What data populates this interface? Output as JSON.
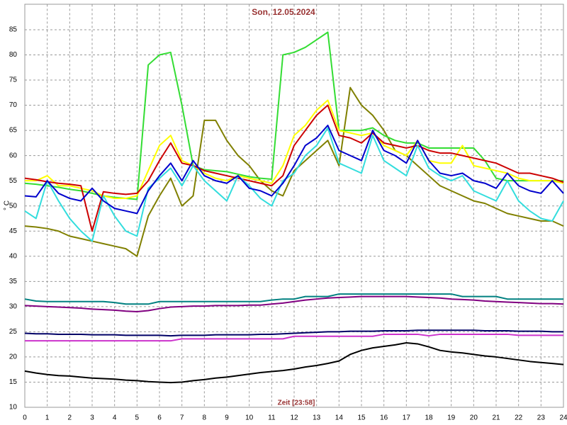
{
  "chart_data": {
    "type": "line",
    "title": "Son, 12.05.2024",
    "x_label": "Zeit [23:58]",
    "y_label": "° C",
    "x": [
      0,
      0.5,
      1,
      1.5,
      2,
      2.5,
      3,
      3.5,
      4,
      4.5,
      5,
      5.5,
      6,
      6.5,
      7,
      7.5,
      8,
      8.5,
      9,
      9.5,
      10,
      10.5,
      11,
      11.5,
      12,
      12.5,
      13,
      13.5,
      14,
      14.5,
      15,
      15.5,
      16,
      16.5,
      17,
      17.5,
      18,
      18.5,
      19,
      19.5,
      20,
      20.5,
      21,
      21.5,
      22,
      22.5,
      23,
      23.5,
      24
    ],
    "xlim": [
      0,
      24
    ],
    "xticks": [
      0,
      1,
      2,
      3,
      4,
      5,
      6,
      7,
      8,
      9,
      10,
      11,
      12,
      13,
      14,
      15,
      16,
      17,
      18,
      19,
      20,
      21,
      22,
      23,
      24
    ],
    "ylim": [
      10,
      90
    ],
    "yticks": [
      10,
      15,
      20,
      25,
      30,
      35,
      40,
      45,
      50,
      55,
      60,
      65,
      70,
      75,
      80,
      85
    ],
    "grid": true,
    "series": [
      {
        "color": "#000000",
        "values": [
          17.2,
          16.8,
          16.5,
          16.3,
          16.2,
          16,
          15.8,
          15.7,
          15.6,
          15.4,
          15.3,
          15.1,
          15,
          14.9,
          15,
          15.3,
          15.5,
          15.8,
          16,
          16.3,
          16.6,
          16.9,
          17.1,
          17.3,
          17.6,
          18,
          18.3,
          18.7,
          19.2,
          20.5,
          21.3,
          21.8,
          22.1,
          22.4,
          22.8,
          22.6,
          22,
          21.3,
          21,
          20.8,
          20.5,
          20.2,
          20,
          19.7,
          19.4,
          19.1,
          18.9,
          18.7,
          18.5
        ]
      },
      {
        "color": "#cc33cc",
        "values": [
          23.2,
          23.2,
          23.2,
          23.2,
          23.2,
          23.2,
          23.2,
          23.2,
          23.2,
          23.2,
          23.2,
          23.2,
          23.2,
          23.2,
          23.6,
          23.6,
          23.6,
          23.6,
          23.6,
          23.6,
          23.6,
          23.6,
          23.6,
          23.6,
          24.1,
          24.1,
          24.1,
          24.1,
          24.1,
          24.1,
          24.1,
          24.1,
          24.5,
          24.5,
          24.5,
          24.5,
          24.2,
          24.5,
          24.5,
          24.5,
          24.5,
          24.5,
          24.5,
          24.5,
          24.3,
          24.3,
          24.3,
          24.3,
          24.3
        ]
      },
      {
        "color": "#000066",
        "values": [
          24.7,
          24.6,
          24.6,
          24.5,
          24.5,
          24.5,
          24.4,
          24.4,
          24.4,
          24.3,
          24.3,
          24.3,
          24.3,
          24.2,
          24.3,
          24.3,
          24.3,
          24.4,
          24.4,
          24.4,
          24.4,
          24.5,
          24.5,
          24.6,
          24.7,
          24.8,
          24.9,
          25,
          25,
          25.1,
          25.1,
          25.1,
          25.2,
          25.2,
          25.2,
          25.3,
          25.3,
          25.3,
          25.3,
          25.3,
          25.3,
          25.2,
          25.2,
          25.2,
          25.1,
          25.1,
          25.1,
          25,
          25
        ]
      },
      {
        "color": "#800080",
        "values": [
          30.2,
          30.1,
          30,
          29.9,
          29.8,
          29.7,
          29.5,
          29.4,
          29.3,
          29.1,
          29,
          29.2,
          29.6,
          29.9,
          30,
          30.1,
          30.1,
          30.2,
          30.2,
          30.2,
          30.3,
          30.3,
          30.5,
          30.7,
          31,
          31.3,
          31.5,
          31.7,
          31.8,
          31.9,
          32,
          32,
          32,
          32,
          32,
          31.9,
          31.8,
          31.7,
          31.5,
          31.4,
          31.3,
          31.1,
          31,
          30.9,
          30.8,
          30.7,
          30.6,
          30.6,
          30.5
        ]
      },
      {
        "color": "#008080",
        "values": [
          31.5,
          31.1,
          31,
          31,
          31,
          31,
          31,
          31,
          30.8,
          30.5,
          30.5,
          30.5,
          31,
          31,
          31,
          31,
          31,
          31,
          31,
          31,
          31,
          31,
          31.3,
          31.5,
          31.5,
          32,
          32,
          32,
          32.5,
          32.5,
          32.5,
          32.5,
          32.5,
          32.5,
          32.5,
          32.5,
          32.5,
          32.5,
          32.5,
          32,
          32,
          32,
          32,
          31.5,
          31.5,
          31.5,
          31.5,
          31.5,
          31.5
        ]
      },
      {
        "color": "#808000",
        "values": [
          46,
          45.8,
          45.5,
          45,
          44,
          43.5,
          43,
          42.5,
          42,
          41.5,
          40,
          48,
          52,
          55.5,
          50,
          52,
          67,
          67,
          63,
          60,
          58,
          55,
          53,
          52,
          57,
          59,
          61,
          63,
          58,
          73.5,
          70,
          68,
          65,
          61,
          60,
          58,
          56,
          54,
          53,
          52,
          51,
          50.5,
          49.5,
          48.5,
          48,
          47.5,
          47,
          47,
          46
        ]
      },
      {
        "color": "#33dd33",
        "values": [
          54.5,
          54.3,
          54,
          53.7,
          53.3,
          53,
          52.5,
          52,
          51.7,
          51.5,
          51.3,
          78,
          80,
          80.5,
          70,
          58,
          57.2,
          57,
          56.8,
          56.3,
          55.8,
          55.5,
          55.3,
          80,
          80.5,
          81.5,
          83,
          84.5,
          65,
          65,
          65,
          65.5,
          64,
          63,
          62.5,
          62.5,
          61.5,
          61.5,
          61.5,
          61.5,
          61.5,
          59,
          55.5,
          55,
          55,
          55,
          55,
          55,
          55
        ]
      },
      {
        "color": "#ffff00",
        "values": [
          55,
          55,
          56,
          54,
          54,
          53.5,
          53,
          52,
          51.5,
          51.5,
          52,
          57,
          62,
          64,
          59,
          58,
          56.5,
          55.5,
          55,
          56,
          55.5,
          55,
          54.5,
          58,
          64,
          66,
          69,
          71,
          65,
          64.5,
          64,
          64.5,
          62,
          61,
          60,
          63,
          59,
          58.5,
          58.5,
          62,
          58,
          57.5,
          57,
          56.5,
          55.5,
          55,
          55,
          55,
          54.5
        ]
      },
      {
        "color": "#cc0000",
        "values": [
          55.5,
          55.2,
          54.8,
          54.5,
          54.3,
          54,
          45,
          52.8,
          52.5,
          52.3,
          52.5,
          55,
          59,
          62.5,
          58.5,
          58,
          57,
          56.5,
          56,
          55.5,
          55,
          54.5,
          54,
          56,
          62,
          65,
          68,
          70,
          64,
          63.5,
          62.5,
          64.5,
          62.5,
          62,
          61.5,
          62,
          61,
          60.5,
          60.5,
          60,
          59.5,
          59,
          58.5,
          57.5,
          56.5,
          56.5,
          56,
          55.5,
          54.7
        ]
      },
      {
        "color": "#33dddd",
        "values": [
          49,
          47.5,
          55,
          51,
          47.5,
          45,
          43,
          52,
          48,
          45,
          44,
          53.5,
          55.5,
          57.5,
          54,
          58,
          55,
          53,
          51,
          56,
          54,
          51.5,
          50,
          55,
          56.5,
          60,
          62,
          65.5,
          58.5,
          57.5,
          56.5,
          64,
          59,
          57.5,
          56,
          62,
          57.5,
          56,
          55,
          56,
          53,
          52,
          51,
          55,
          51,
          49,
          47.5,
          47,
          51
        ]
      },
      {
        "color": "#0000cc",
        "values": [
          52,
          51.8,
          55,
          52.5,
          51.5,
          51,
          53.5,
          51,
          49.5,
          49,
          48.5,
          53,
          56,
          58.5,
          55,
          59,
          56,
          55,
          54.5,
          56,
          53.5,
          53,
          52,
          54.5,
          58,
          62,
          63.5,
          66,
          61,
          60,
          59,
          65,
          61,
          60,
          58.5,
          63,
          59,
          56.5,
          56,
          56.5,
          55,
          54.5,
          53.5,
          56.5,
          54,
          53,
          52.5,
          55,
          52.5
        ]
      }
    ]
  }
}
